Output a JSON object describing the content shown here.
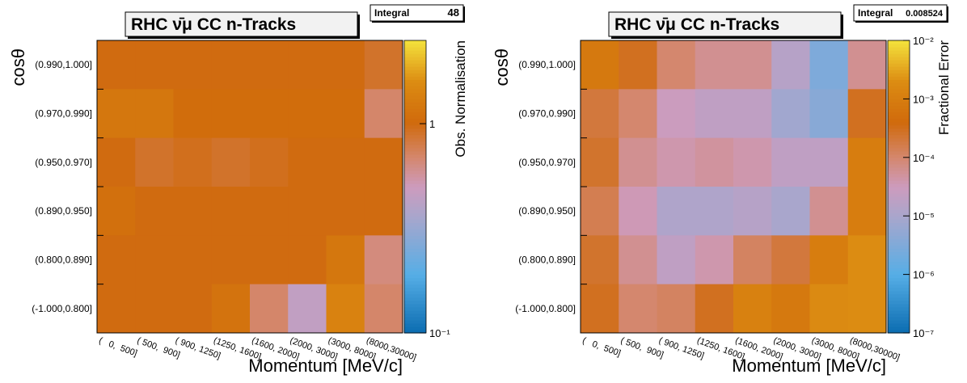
{
  "chart_data": [
    {
      "type": "heatmap",
      "title": "RHC ν̄μ CC n-Tracks",
      "stats": {
        "label": "Integral",
        "value": 48
      },
      "xlabel": "Momentum [MeV/c]",
      "ylabel": "cosθ",
      "zlabel": "Obs. Normalisation",
      "x_categories": [
        "(   0,  500]",
        "( 500,  900]",
        "( 900, 1250]",
        "(1250, 1600]",
        "(1600, 2000]",
        "(2000, 3000]",
        "(3000, 8000]",
        "(8000,30000]"
      ],
      "y_categories": [
        "(0.990,1.000]",
        "(0.970,0.990]",
        "(0.950,0.970]",
        "(0.890,0.950]",
        "(0.800,0.890]",
        "(-1.000,0.800]"
      ],
      "values": [
        [
          1.0,
          1.0,
          1.0,
          1.0,
          1.0,
          1.0,
          1.0,
          0.9
        ],
        [
          1.2,
          1.2,
          1.05,
          1.05,
          1.05,
          1.05,
          1.05,
          0.7
        ],
        [
          1.0,
          0.9,
          0.95,
          0.9,
          0.95,
          1.0,
          1.0,
          1.0
        ],
        [
          1.1,
          1.0,
          1.0,
          1.0,
          1.0,
          1.0,
          1.0,
          1.0
        ],
        [
          1.0,
          1.0,
          1.0,
          1.0,
          1.0,
          1.0,
          1.2,
          0.65
        ],
        [
          1.0,
          1.0,
          1.0,
          1.15,
          0.7,
          0.45,
          1.4,
          0.7
        ]
      ],
      "log_z": true,
      "zlim": [
        0.1,
        2.5
      ],
      "zticks": [
        {
          "value": 0.1,
          "label": "10⁻¹"
        },
        1
      ]
    },
    {
      "type": "heatmap",
      "title": "RHC ν̄μ CC n-Tracks",
      "stats": {
        "label": "Integral",
        "value": 0.008524
      },
      "xlabel": "Momentum [MeV/c]",
      "ylabel": "cosθ",
      "zlabel": "Fractional Error",
      "x_categories": [
        "(   0,  500]",
        "( 500,  900]",
        "( 900, 1250]",
        "(1250, 1600]",
        "(1600, 2000]",
        "(2000, 3000]",
        "(3000, 8000]",
        "(8000,30000]"
      ],
      "y_categories": [
        "(0.990,1.000]",
        "(0.970,0.990]",
        "(0.950,0.970]",
        "(0.890,0.950]",
        "(0.800,0.890]",
        "(-1.000,0.800]"
      ],
      "values": [
        [
          0.0008,
          0.0003,
          0.0001,
          6e-05,
          6e-05,
          1.5e-05,
          3e-06,
          6e-05
        ],
        [
          0.0002,
          0.0001,
          3e-05,
          2e-05,
          2e-05,
          8e-06,
          4e-06,
          0.0003
        ],
        [
          0.00025,
          6e-05,
          4e-05,
          5e-05,
          4e-05,
          2e-05,
          2e-05,
          0.001
        ],
        [
          0.00015,
          3.5e-05,
          1.2e-05,
          1.2e-05,
          1.5e-05,
          1e-05,
          6e-05,
          0.001
        ],
        [
          0.00025,
          6e-05,
          2e-05,
          4e-05,
          0.00012,
          0.0002,
          0.001,
          0.002
        ],
        [
          0.0003,
          0.0001,
          0.00012,
          0.0003,
          0.0012,
          0.0008,
          0.0018,
          0.002
        ]
      ],
      "log_z": true,
      "zlim": [
        1e-07,
        0.01
      ],
      "zticks": [
        {
          "value": 1e-07,
          "label": "10⁻⁷"
        },
        {
          "value": 1e-06,
          "label": "10⁻⁶"
        },
        {
          "value": 1e-05,
          "label": "10⁻⁵"
        },
        {
          "value": 0.0001,
          "label": "10⁻⁴"
        },
        {
          "value": 0.001,
          "label": "10⁻³"
        },
        {
          "value": 0.01,
          "label": "10⁻²"
        }
      ]
    }
  ]
}
